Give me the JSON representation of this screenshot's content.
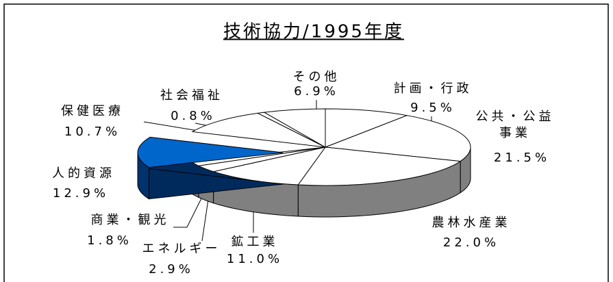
{
  "chart_data": {
    "type": "pie",
    "title": "技術協力/1995年度",
    "categories": [
      "計画・行政",
      "公共・公益事業",
      "農林水産業",
      "鉱工業",
      "エネルギー",
      "商業・観光",
      "人的資源",
      "保健医療",
      "社会福祉",
      "その他"
    ],
    "values": [
      9.5,
      21.5,
      22.0,
      11.0,
      2.9,
      1.8,
      12.9,
      10.7,
      0.8,
      6.9
    ],
    "value_labels": [
      "9.5%",
      "21.5%",
      "22.0%",
      "11.0%",
      "2.9%",
      "1.8%",
      "12.9%",
      "10.7%",
      "0.8%",
      "6.9%"
    ],
    "colors": [
      "#ffffff",
      "#ffffff",
      "#ffffff",
      "#ffffff",
      "#ffffff",
      "#ffffff",
      "#0066cc",
      "#ffffff",
      "#ffffff",
      "#ffffff"
    ]
  }
}
